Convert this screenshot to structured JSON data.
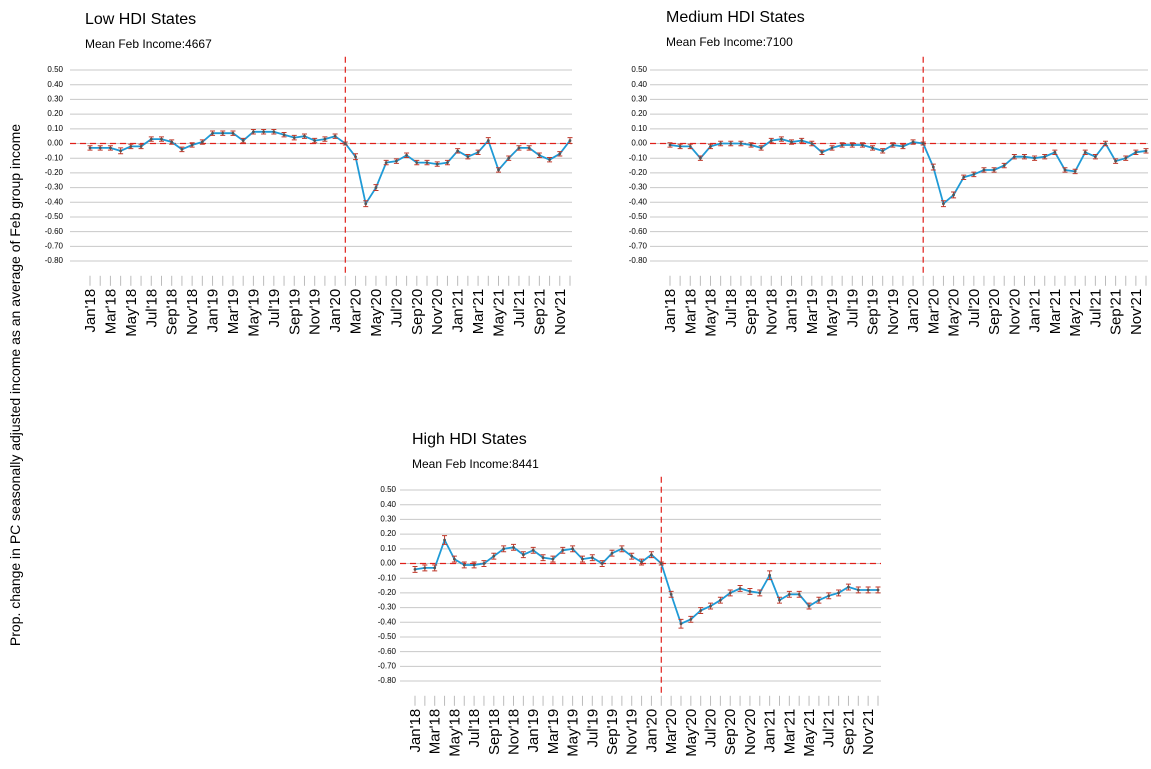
{
  "ylabel": "Prop. change in PC seasonally adjusted income as an average of Feb group income",
  "chart_data": [
    {
      "type": "line",
      "title": "Low HDI States",
      "subtitle": "Mean Feb Income:4667",
      "categories": [
        "Jan'18",
        null,
        "Mar'18",
        null,
        "May'18",
        null,
        "Jul'18",
        null,
        "Sep'18",
        null,
        "Nov'18",
        null,
        "Jan'19",
        null,
        "Mar'19",
        null,
        "May'19",
        null,
        "Jul'19",
        null,
        "Sep'19",
        null,
        "Nov'19",
        null,
        "Jan'20",
        null,
        "Mar'20",
        null,
        "May'20",
        null,
        "Jul'20",
        null,
        "Sep'20",
        null,
        "Nov'20",
        null,
        "Jan'21",
        null,
        "Mar'21",
        null,
        "May'21",
        null,
        "Jul'21",
        null,
        "Sep'21",
        null,
        "Nov'21",
        null
      ],
      "values": [
        -0.03,
        -0.03,
        -0.03,
        -0.05,
        -0.02,
        -0.02,
        0.03,
        0.03,
        0.01,
        -0.04,
        -0.01,
        0.01,
        0.07,
        0.07,
        0.07,
        0.02,
        0.08,
        0.08,
        0.08,
        0.06,
        0.04,
        0.05,
        0.02,
        0.03,
        0.05,
        0.0,
        -0.09,
        -0.41,
        -0.3,
        -0.13,
        -0.12,
        -0.08,
        -0.13,
        -0.13,
        -0.14,
        -0.13,
        -0.05,
        -0.09,
        -0.06,
        0.02,
        -0.18,
        -0.1,
        -0.03,
        -0.03,
        -0.08,
        -0.11,
        -0.07,
        0.02
      ],
      "errors": [
        0.015,
        0.015,
        0.015,
        0.02,
        0.015,
        0.015,
        0.015,
        0.015,
        0.015,
        0.015,
        0.015,
        0.015,
        0.015,
        0.015,
        0.015,
        0.015,
        0.015,
        0.015,
        0.015,
        0.015,
        0.015,
        0.015,
        0.015,
        0.015,
        0.015,
        0.01,
        0.02,
        0.02,
        0.02,
        0.015,
        0.015,
        0.015,
        0.015,
        0.015,
        0.015,
        0.015,
        0.015,
        0.015,
        0.015,
        0.02,
        0.015,
        0.015,
        0.015,
        0.015,
        0.015,
        0.015,
        0.015,
        0.02
      ],
      "color": "#1f9ad6",
      "error_color": "#c0392b",
      "ref_color": "#e0201b",
      "vline": 25,
      "hline": 0,
      "ylim": [
        -0.88,
        0.55
      ],
      "yticks": [
        {
          "value": 0.5,
          "label": "0.50"
        },
        {
          "value": 0.4,
          "label": "0.40"
        },
        {
          "value": 0.3,
          "label": "0.30"
        },
        {
          "value": 0.2,
          "label": "0.20"
        },
        {
          "value": 0.1,
          "label": "0.10"
        },
        {
          "value": 0,
          "label": "0.00"
        },
        {
          "value": -0.1,
          "label": "-0.10"
        },
        {
          "value": -0.2,
          "label": "-0.20"
        },
        {
          "value": -0.3,
          "label": "-0.30"
        },
        {
          "value": -0.4,
          "label": "-0.40"
        },
        {
          "value": -0.5,
          "label": "-0.50"
        },
        {
          "value": -0.6,
          "label": "-0.60"
        },
        {
          "value": -0.7,
          "label": "-0.70"
        },
        {
          "value": -0.8,
          "label": "-0.80"
        }
      ],
      "grid": true
    },
    {
      "type": "line",
      "title": "Medium HDI States",
      "subtitle": "Mean Feb Income:7100",
      "categories": [
        "Jan'18",
        null,
        "Mar'18",
        null,
        "May'18",
        null,
        "Jul'18",
        null,
        "Sep'18",
        null,
        "Nov'18",
        null,
        "Jan'19",
        null,
        "Mar'19",
        null,
        "May'19",
        null,
        "Jul'19",
        null,
        "Sep'19",
        null,
        "Nov'19",
        null,
        "Jan'20",
        null,
        "Mar'20",
        null,
        "May'20",
        null,
        "Jul'20",
        null,
        "Sep'20",
        null,
        "Nov'20",
        null,
        "Jan'21",
        null,
        "Mar'21",
        null,
        "May'21",
        null,
        "Jul'21",
        null,
        "Sep'21",
        null,
        "Nov'21",
        null
      ],
      "values": [
        -0.01,
        -0.02,
        -0.02,
        -0.1,
        -0.02,
        0.0,
        0.0,
        0.0,
        -0.01,
        -0.03,
        0.02,
        0.03,
        0.01,
        0.02,
        0.0,
        -0.06,
        -0.03,
        -0.01,
        -0.01,
        -0.01,
        -0.03,
        -0.05,
        -0.01,
        -0.02,
        0.01,
        0.0,
        -0.16,
        -0.41,
        -0.35,
        -0.23,
        -0.21,
        -0.18,
        -0.18,
        -0.15,
        -0.09,
        -0.09,
        -0.1,
        -0.09,
        -0.06,
        -0.18,
        -0.19,
        -0.06,
        -0.09,
        0.0,
        -0.12,
        -0.1,
        -0.06,
        -0.05
      ],
      "errors": [
        0.015,
        0.015,
        0.015,
        0.015,
        0.015,
        0.015,
        0.015,
        0.015,
        0.015,
        0.015,
        0.015,
        0.015,
        0.015,
        0.015,
        0.015,
        0.015,
        0.015,
        0.015,
        0.015,
        0.015,
        0.015,
        0.015,
        0.015,
        0.015,
        0.015,
        0.01,
        0.02,
        0.02,
        0.02,
        0.015,
        0.015,
        0.015,
        0.015,
        0.015,
        0.015,
        0.015,
        0.015,
        0.015,
        0.015,
        0.015,
        0.015,
        0.015,
        0.015,
        0.015,
        0.015,
        0.015,
        0.015,
        0.015
      ],
      "color": "#1f9ad6",
      "error_color": "#c0392b",
      "ref_color": "#e0201b",
      "vline": 25,
      "hline": 0,
      "ylim": [
        -0.88,
        0.55
      ],
      "yticks": [
        {
          "value": 0.5,
          "label": "0.50"
        },
        {
          "value": 0.4,
          "label": "0.40"
        },
        {
          "value": 0.3,
          "label": "0.30"
        },
        {
          "value": 0.2,
          "label": "0.20"
        },
        {
          "value": 0.1,
          "label": "0.10"
        },
        {
          "value": 0,
          "label": "0.00"
        },
        {
          "value": -0.1,
          "label": "-0.10"
        },
        {
          "value": -0.2,
          "label": "-0.20"
        },
        {
          "value": -0.3,
          "label": "-0.30"
        },
        {
          "value": -0.4,
          "label": "-0.40"
        },
        {
          "value": -0.5,
          "label": "-0.50"
        },
        {
          "value": -0.6,
          "label": "-0.60"
        },
        {
          "value": -0.7,
          "label": "-0.70"
        },
        {
          "value": -0.8,
          "label": "-0.80"
        }
      ],
      "grid": true
    },
    {
      "type": "line",
      "title": "High HDI States",
      "subtitle": "Mean Feb Income:8441",
      "categories": [
        "Jan'18",
        null,
        "Mar'18",
        null,
        "May'18",
        null,
        "Jul'18",
        null,
        "Sep'18",
        null,
        "Nov'18",
        null,
        "Jan'19",
        null,
        "Mar'19",
        null,
        "May'19",
        null,
        "Jul'19",
        null,
        "Sep'19",
        null,
        "Nov'19",
        null,
        "Jan'20",
        null,
        "Mar'20",
        null,
        "May'20",
        null,
        "Jul'20",
        null,
        "Sep'20",
        null,
        "Nov'20",
        null,
        "Jan'21",
        null,
        "Mar'21",
        null,
        "May'21",
        null,
        "Jul'21",
        null,
        "Sep'21",
        null,
        "Nov'21",
        null
      ],
      "values": [
        -0.04,
        -0.03,
        -0.03,
        0.16,
        0.03,
        -0.01,
        -0.01,
        0.0,
        0.05,
        0.1,
        0.11,
        0.06,
        0.09,
        0.04,
        0.03,
        0.09,
        0.1,
        0.03,
        0.04,
        0.0,
        0.07,
        0.1,
        0.05,
        0.01,
        0.06,
        0.0,
        -0.21,
        -0.41,
        -0.38,
        -0.32,
        -0.29,
        -0.25,
        -0.2,
        -0.17,
        -0.19,
        -0.2,
        -0.08,
        -0.25,
        -0.21,
        -0.21,
        -0.29,
        -0.25,
        -0.22,
        -0.2,
        -0.16,
        -0.18,
        -0.18,
        -0.18
      ],
      "errors": [
        0.02,
        0.02,
        0.02,
        0.03,
        0.02,
        0.02,
        0.02,
        0.02,
        0.02,
        0.02,
        0.02,
        0.02,
        0.02,
        0.02,
        0.02,
        0.02,
        0.02,
        0.02,
        0.02,
        0.02,
        0.02,
        0.02,
        0.02,
        0.02,
        0.02,
        0.01,
        0.02,
        0.03,
        0.02,
        0.02,
        0.02,
        0.02,
        0.02,
        0.02,
        0.02,
        0.02,
        0.03,
        0.02,
        0.02,
        0.02,
        0.02,
        0.02,
        0.02,
        0.02,
        0.02,
        0.02,
        0.02,
        0.02
      ],
      "color": "#1f9ad6",
      "error_color": "#c0392b",
      "ref_color": "#e0201b",
      "vline": 25,
      "hline": 0,
      "ylim": [
        -0.88,
        0.55
      ],
      "yticks": [
        {
          "value": 0.5,
          "label": "0.50"
        },
        {
          "value": 0.4,
          "label": "0.40"
        },
        {
          "value": 0.3,
          "label": "0.30"
        },
        {
          "value": 0.2,
          "label": "0.20"
        },
        {
          "value": 0.1,
          "label": "0.10"
        },
        {
          "value": 0,
          "label": "0.00"
        },
        {
          "value": -0.1,
          "label": "-0.10"
        },
        {
          "value": -0.2,
          "label": "-0.20"
        },
        {
          "value": -0.3,
          "label": "-0.30"
        },
        {
          "value": -0.4,
          "label": "-0.40"
        },
        {
          "value": -0.5,
          "label": "-0.50"
        },
        {
          "value": -0.6,
          "label": "-0.60"
        },
        {
          "value": -0.7,
          "label": "-0.70"
        },
        {
          "value": -0.8,
          "label": "-0.80"
        }
      ],
      "grid": true
    }
  ]
}
